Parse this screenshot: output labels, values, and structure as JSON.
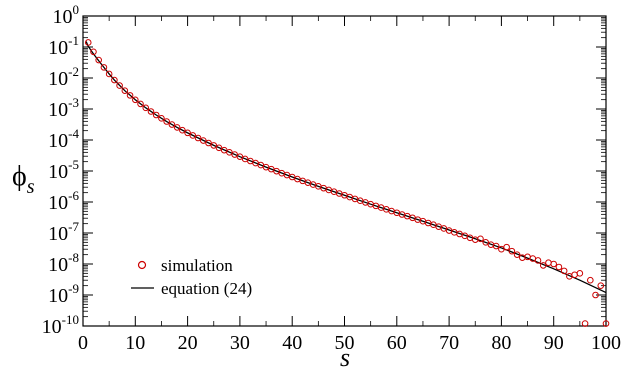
{
  "chart_data": {
    "type": "scatter",
    "xlabel": "s",
    "ylabel": "ϕs",
    "xlim": [
      0,
      100
    ],
    "ylim": [
      1e-10,
      1
    ],
    "yscale": "log",
    "grid": false,
    "legend_position": "bottom-left",
    "x_ticks": [
      "0",
      "10",
      "20",
      "30",
      "40",
      "50",
      "60",
      "70",
      "80",
      "90",
      "100"
    ],
    "y_ticks": [
      {
        "base": "10",
        "exp": "-10"
      },
      {
        "base": "10",
        "exp": "-9"
      },
      {
        "base": "10",
        "exp": "-8"
      },
      {
        "base": "10",
        "exp": "-7"
      },
      {
        "base": "10",
        "exp": "-6"
      },
      {
        "base": "10",
        "exp": "-5"
      },
      {
        "base": "10",
        "exp": "-4"
      },
      {
        "base": "10",
        "exp": "-3"
      },
      {
        "base": "10",
        "exp": "-2"
      },
      {
        "base": "10",
        "exp": "-1"
      },
      {
        "base": "10",
        "exp": "0"
      }
    ],
    "series": [
      {
        "name": "simulation",
        "marker": "open-circle",
        "color": "#cc0000",
        "x": [
          1,
          2,
          3,
          4,
          5,
          6,
          7,
          8,
          9,
          10,
          11,
          12,
          13,
          14,
          15,
          16,
          17,
          18,
          19,
          20,
          21,
          22,
          23,
          24,
          25,
          26,
          27,
          28,
          29,
          30,
          31,
          32,
          33,
          34,
          35,
          36,
          37,
          38,
          39,
          40,
          41,
          42,
          43,
          44,
          45,
          46,
          47,
          48,
          49,
          50,
          51,
          52,
          53,
          54,
          55,
          56,
          57,
          58,
          59,
          60,
          61,
          62,
          63,
          64,
          65,
          66,
          67,
          68,
          69,
          70,
          71,
          72,
          73,
          74,
          75,
          76,
          77,
          78,
          79,
          80,
          81,
          82,
          83,
          84,
          85,
          86,
          87,
          88,
          89,
          90,
          91,
          92,
          93,
          94,
          95,
          96,
          97,
          98,
          99,
          100
        ],
        "y": [
          0.14,
          0.07,
          0.038,
          0.022,
          0.0135,
          0.0086,
          0.0057,
          0.0039,
          0.00275,
          0.00198,
          0.00146,
          0.00109,
          0.00083,
          0.00064,
          0.0005,
          0.000395,
          0.000315,
          0.000255,
          0.000207,
          0.00017,
          0.00014,
          0.000116,
          9.6e-05,
          8e-05,
          6.7e-05,
          5.6e-05,
          4.7e-05,
          4e-05,
          3.4e-05,
          2.9e-05,
          2.45e-05,
          2.1e-05,
          1.8e-05,
          1.55e-05,
          1.33e-05,
          1.15e-05,
          9.9e-06,
          8.5e-06,
          7.4e-06,
          6.4e-06,
          5.5e-06,
          4.8e-06,
          4.2e-06,
          3.65e-06,
          3.2e-06,
          2.8e-06,
          2.45e-06,
          2.15e-06,
          1.88e-06,
          1.65e-06,
          1.44e-06,
          1.26e-06,
          1.1e-06,
          9.7e-07,
          8.5e-07,
          7.5e-07,
          6.6e-07,
          5.8e-07,
          5.1e-07,
          4.5e-07,
          3.95e-07,
          3.5e-07,
          3.1e-07,
          2.7e-07,
          2.4e-07,
          2.1e-07,
          1.85e-07,
          1.6e-07,
          1.4e-07,
          1.2e-07,
          1.05e-07,
          9.3e-08,
          8.1e-08,
          7e-08,
          6.1e-08,
          6.5e-08,
          5e-08,
          4.2e-08,
          3.8e-08,
          3e-08,
          3.5e-08,
          2.6e-08,
          2e-08,
          1.6e-08,
          1.7e-08,
          1.5e-08,
          1.3e-08,
          9e-09,
          1.1e-08,
          1e-08,
          8e-09,
          6e-09,
          4e-09,
          4.5e-09,
          5e-09,
          1.2e-10,
          3e-09,
          1e-09,
          2e-09,
          1.2e-10
        ]
      },
      {
        "name": "equation (24)",
        "marker": "line",
        "color": "#000000",
        "x": [
          0.6,
          1,
          2,
          3,
          4,
          5,
          6,
          8,
          10,
          12,
          14,
          16,
          18,
          20,
          25,
          30,
          35,
          40,
          45,
          50,
          55,
          60,
          65,
          70,
          75,
          80,
          85,
          90,
          95,
          100
        ],
        "y": [
          0.15,
          0.105,
          0.06,
          0.036,
          0.022,
          0.0135,
          0.0086,
          0.0039,
          0.00198,
          0.00109,
          0.00064,
          0.000395,
          0.000255,
          0.00017,
          6.7e-05,
          2.9e-05,
          1.33e-05,
          6.4e-06,
          3.2e-06,
          1.65e-06,
          8.5e-07,
          4.5e-07,
          2.4e-07,
          1.25e-07,
          6.5e-08,
          3.3e-08,
          1.55e-08,
          7e-09,
          3e-09,
          1.2e-09
        ]
      }
    ]
  }
}
